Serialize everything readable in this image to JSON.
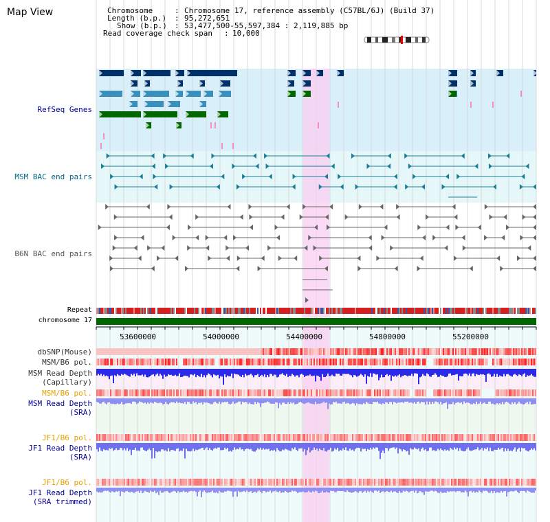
{
  "page": {
    "title": "Map View"
  },
  "info": {
    "chromosome_label": "Chromosome",
    "chromosome_value": "Chromosome 17, reference assembly (C57BL/6J) (Build 37)",
    "length_label": "Length (b.p.)",
    "length_value": "95,272,651",
    "show_label": "Show (b.p.)",
    "show_value": "53,477,500-55,597,384 : 2,119,885 bp",
    "coverage_label": "Read coverage check span",
    "coverage_value": "10,000"
  },
  "tracks": {
    "refseq": "RefSeq Genes",
    "msm_bac": "MSM BAC end pairs",
    "b6n_bac": "B6N BAC end pairs",
    "repeat": "Repeat",
    "chromosome": "chromosome 17",
    "dbsnp": "dbSNP(Mouse)",
    "msm_pol": "MSM/B6 pol.",
    "msm_depth_cap_1": "MSM Read Depth",
    "msm_depth_cap_2": "(Capillary)",
    "msm_pol_sra": "MSM/B6 pol.",
    "msm_depth_sra_1": "MSM Read Depth",
    "msm_depth_sra_2": "(SRA)",
    "jf1_pol": "JF1/B6 pol.",
    "jf1_depth_1": "JF1 Read Depth",
    "jf1_depth_2": "(SRA)",
    "jf1_pol_trim": "JF1/B6 pol.",
    "jf1_trim_1": "JF1 Read Depth",
    "jf1_trim_2": "(SRA trimmed)"
  },
  "axis_ticks": [
    "53600000",
    "54000000",
    "54400000",
    "54800000",
    "55200000"
  ],
  "colors": {
    "refseq_bg": "#d9f0fa",
    "msm_bac_bg": "#e6f7f9",
    "track_bg": "#ecfbfb",
    "highlight": "#f9cdf2",
    "chromosome": "#006600",
    "gene_dark": "#00306a",
    "gene_light": "#3b8fbd",
    "gene_green": "#006600",
    "bac_teal": "#1a7f96",
    "bac_gray": "#666666",
    "refseq_label": "#000099",
    "msm_label": "#006680",
    "b6n_label": "#555555",
    "sra_label": "#000099",
    "pol_label_orange": "#e8a000"
  }
}
